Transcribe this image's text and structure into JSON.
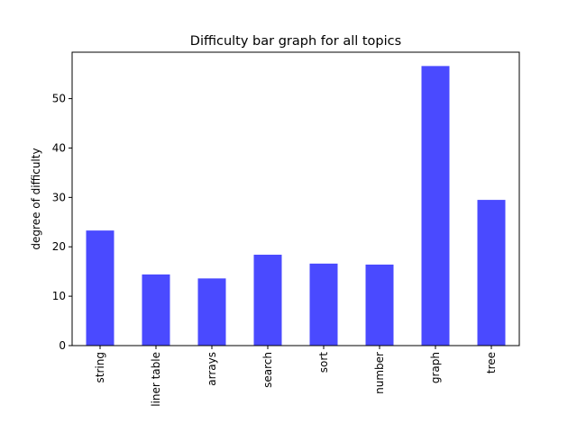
{
  "chart_data": {
    "type": "bar",
    "title": "Difficulty bar graph for all topics",
    "xlabel": "",
    "ylabel": "degree of difficulty",
    "categories": [
      "string",
      "liner table",
      "arrays",
      "search",
      "sort",
      "number",
      "graph",
      "tree"
    ],
    "values": [
      23.3,
      14.4,
      13.6,
      18.4,
      16.6,
      16.4,
      56.6,
      29.5
    ],
    "ylim": [
      0,
      59.4
    ],
    "yticks": [
      "0",
      "10",
      "20",
      "30",
      "40",
      "50"
    ],
    "grid": false,
    "legend": "none",
    "bar_color": "#4a4aff"
  }
}
